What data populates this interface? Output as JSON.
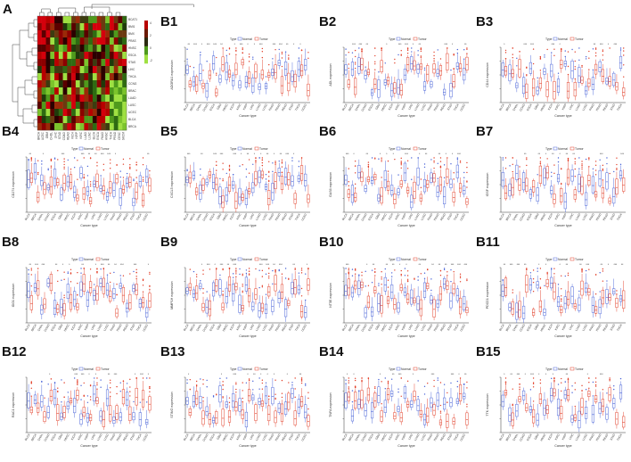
{
  "figure_label": "A",
  "heatmap": {
    "columns": [
      "BRCA",
      "UCEC",
      "GBM",
      "CHOL",
      "LIHC",
      "STAD",
      "COAD",
      "READ",
      "KICH",
      "KIRP",
      "KIRC",
      "LUAD",
      "LUSC",
      "BLCA",
      "ESCA",
      "PAAD",
      "HNSC",
      "THCA",
      "PRAD",
      "CESC",
      "SKCM"
    ],
    "rows": [
      "BCAT1",
      "BMI1",
      "BMX",
      "PRAS",
      "HNSC",
      "ESCA",
      "STAS",
      "LIHC",
      "THCA",
      "CCNG",
      "BRAC",
      "LUAD",
      "LUSC",
      "UCEC",
      "BLCA",
      "BRCA"
    ],
    "legend_ticks": [
      "4",
      "2",
      "0",
      "-2"
    ]
  },
  "shared": {
    "legend_title": "Type",
    "legend_normal": "Normal",
    "legend_tumor": "Tumor",
    "xlabel": "Cancer type",
    "normal_color": "#4a64d8",
    "tumor_color": "#e2402a"
  },
  "panels": [
    {
      "label": "B1",
      "ylabel": "ADORA1 expression",
      "n": 19,
      "seed": 11
    },
    {
      "label": "B2",
      "ylabel": "ADL expression",
      "n": 19,
      "seed": 23
    },
    {
      "label": "B3",
      "ylabel": "CD44 expression",
      "n": 18,
      "seed": 37
    },
    {
      "label": "B4",
      "ylabel": "CD274 expression",
      "n": 19,
      "seed": 41
    },
    {
      "label": "B5",
      "ylabel": "CXCL5 expression",
      "n": 19,
      "seed": 53
    },
    {
      "label": "B6",
      "ylabel": "GAS6 expression",
      "n": 19,
      "seed": 67
    },
    {
      "label": "B7",
      "ylabel": "IGSF expression",
      "n": 18,
      "seed": 71
    },
    {
      "label": "B8",
      "ylabel": "IDO1 expression",
      "n": 19,
      "seed": 83
    },
    {
      "label": "B9",
      "ylabel": "MMP1H expression",
      "n": 19,
      "seed": 97
    },
    {
      "label": "B10",
      "ylabel": "NT5E expression",
      "n": 19,
      "seed": 101
    },
    {
      "label": "B11",
      "ylabel": "PDCD1 expression",
      "n": 18,
      "seed": 113
    },
    {
      "label": "B12",
      "ylabel": "RAC1 expression",
      "n": 19,
      "seed": 127
    },
    {
      "label": "B13",
      "ylabel": "STING expression",
      "n": 19,
      "seed": 131
    },
    {
      "label": "B14",
      "ylabel": "TNFA expression",
      "n": 19,
      "seed": 149
    },
    {
      "label": "B15",
      "ylabel": "TTK expression",
      "n": 18,
      "seed": 157
    }
  ],
  "cancer_types": [
    "BLCA",
    "BRCA",
    "CHOL",
    "COAD",
    "ESCA",
    "GBM",
    "HNSC",
    "KICH",
    "KIRC",
    "KIRP",
    "LIHC",
    "LUAD",
    "LUSC",
    "PAAD",
    "PRAD",
    "READ",
    "STAD",
    "THCA",
    "UCEC"
  ],
  "sig_marks": [
    "***",
    "**",
    "*"
  ]
}
